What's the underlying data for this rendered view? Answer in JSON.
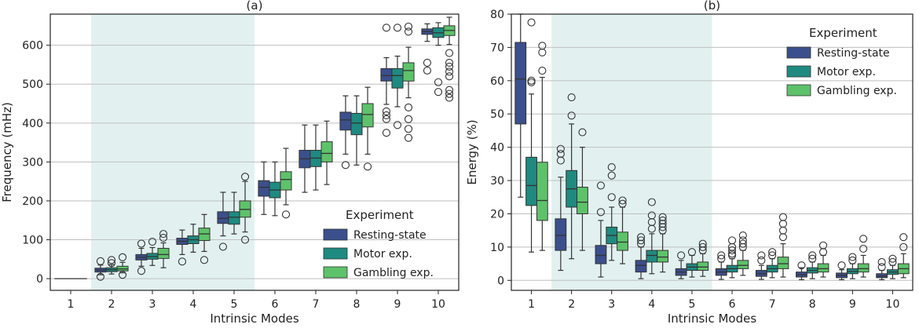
{
  "colors": {
    "resting": "#3b4f8c",
    "motor": "#1f8a80",
    "gambling": "#5ec26a",
    "shade": "#e2f1f0",
    "grid": "#bfbfbf",
    "axis": "#222222"
  },
  "chart_data": [
    {
      "type": "box",
      "panel_label": "(a)",
      "title": "",
      "xlabel": "Intrinsic Modes",
      "ylabel": "Frequency  (mHz)",
      "categories": [
        "1",
        "2",
        "3",
        "4",
        "5",
        "6",
        "7",
        "8",
        "9",
        "10"
      ],
      "ylim": [
        -30,
        680
      ],
      "yticks": [
        0,
        100,
        200,
        300,
        400,
        500,
        600
      ],
      "grid": "horizontal",
      "shaded_range": [
        2,
        5
      ],
      "legend": {
        "title": "Experiment",
        "position": "bottom-right"
      },
      "mode1_line": {
        "category": "1",
        "value": 0
      },
      "series": [
        {
          "name": "Resting-state",
          "color_key": "resting",
          "boxes": [
            null,
            {
              "q1": 17,
              "med": 22,
              "q3": 27,
              "lo": 10,
              "hi": 35,
              "out": [
                5,
                45
              ]
            },
            {
              "q1": 48,
              "med": 55,
              "q3": 62,
              "lo": 32,
              "hi": 78,
              "out": [
                20,
                90
              ]
            },
            {
              "q1": 88,
              "med": 96,
              "q3": 104,
              "lo": 62,
              "hi": 125,
              "out": [
                44
              ]
            },
            {
              "q1": 142,
              "med": 155,
              "q3": 172,
              "lo": 110,
              "hi": 222,
              "out": [
                82
              ]
            },
            {
              "q1": 212,
              "med": 235,
              "q3": 252,
              "lo": 165,
              "hi": 300,
              "out": []
            },
            {
              "q1": 285,
              "med": 308,
              "q3": 330,
              "lo": 222,
              "hi": 395,
              "out": []
            },
            {
              "q1": 382,
              "med": 408,
              "q3": 428,
              "lo": 320,
              "hi": 470,
              "out": [
                292
              ]
            },
            {
              "q1": 508,
              "med": 522,
              "q3": 540,
              "lo": 448,
              "hi": 568,
              "out": [
                375,
                410,
                420,
                430,
                645
              ]
            },
            {
              "q1": 628,
              "med": 635,
              "q3": 642,
              "lo": 610,
              "hi": 655,
              "out": [
                535,
                555
              ]
            }
          ]
        },
        {
          "name": "Motor exp.",
          "color_key": "motor",
          "boxes": [
            null,
            {
              "q1": 18,
              "med": 23,
              "q3": 28,
              "lo": 12,
              "hi": 36,
              "out": [
                40,
                48
              ]
            },
            {
              "q1": 50,
              "med": 57,
              "q3": 65,
              "lo": 34,
              "hi": 80,
              "out": [
                95
              ]
            },
            {
              "q1": 90,
              "med": 100,
              "q3": 110,
              "lo": 68,
              "hi": 140,
              "out": []
            },
            {
              "q1": 140,
              "med": 158,
              "q3": 172,
              "lo": 115,
              "hi": 222,
              "out": []
            },
            {
              "q1": 208,
              "med": 228,
              "q3": 248,
              "lo": 162,
              "hi": 300,
              "out": []
            },
            {
              "q1": 288,
              "med": 310,
              "q3": 330,
              "lo": 228,
              "hi": 395,
              "out": []
            },
            {
              "q1": 370,
              "med": 400,
              "q3": 425,
              "lo": 292,
              "hi": 470,
              "out": []
            },
            {
              "q1": 490,
              "med": 522,
              "q3": 540,
              "lo": 442,
              "hi": 572,
              "out": [
                395,
                645
              ]
            },
            {
              "q1": 620,
              "med": 632,
              "q3": 645,
              "lo": 600,
              "hi": 658,
              "out": [
                480,
                505
              ]
            }
          ]
        },
        {
          "name": "Gambling exp.",
          "color_key": "gambling",
          "boxes": [
            null,
            {
              "q1": 20,
              "med": 25,
              "q3": 32,
              "lo": 15,
              "hi": 42,
              "out": [
                10,
                55
              ]
            },
            {
              "q1": 52,
              "med": 62,
              "q3": 78,
              "lo": 28,
              "hi": 92,
              "out": [
                105,
                115
              ]
            },
            {
              "q1": 98,
              "med": 115,
              "q3": 130,
              "lo": 70,
              "hi": 165,
              "out": [
                48
              ]
            },
            {
              "q1": 158,
              "med": 178,
              "q3": 200,
              "lo": 120,
              "hi": 250,
              "out": [
                100,
                262
              ]
            },
            {
              "q1": 228,
              "med": 255,
              "q3": 275,
              "lo": 190,
              "hi": 335,
              "out": [
                165
              ]
            },
            {
              "q1": 300,
              "med": 322,
              "q3": 352,
              "lo": 242,
              "hi": 405,
              "out": []
            },
            {
              "q1": 390,
              "med": 422,
              "q3": 450,
              "lo": 320,
              "hi": 492,
              "out": [
                288
              ]
            },
            {
              "q1": 508,
              "med": 535,
              "q3": 555,
              "lo": 465,
              "hi": 595,
              "out": [
                362,
                385,
                410,
                440,
                635,
                648
              ]
            },
            {
              "q1": 625,
              "med": 638,
              "q3": 650,
              "lo": 602,
              "hi": 672,
              "out": [
                465,
                475,
                485,
                520,
                532,
                545,
                555,
                580
              ]
            }
          ]
        }
      ]
    },
    {
      "type": "box",
      "panel_label": "(b)",
      "title": "",
      "xlabel": "Intrinsic Modes",
      "ylabel": "Energy (%)",
      "categories": [
        "1",
        "2",
        "3",
        "4",
        "5",
        "6",
        "7",
        "8",
        "9",
        "10"
      ],
      "ylim": [
        -3,
        80
      ],
      "yticks": [
        0,
        10,
        20,
        30,
        40,
        50,
        60,
        70,
        80
      ],
      "grid": "horizontal",
      "shaded_range": [
        2,
        5
      ],
      "legend": {
        "title": "Experiment",
        "position": "top-right"
      },
      "series": [
        {
          "name": "Resting-state",
          "color_key": "resting",
          "boxes": [
            {
              "q1": 47,
              "med": 60.5,
              "q3": 71.5,
              "lo": 25,
              "hi": 80,
              "out": []
            },
            {
              "q1": 9,
              "med": 13.5,
              "q3": 18.5,
              "lo": 3,
              "hi": 31,
              "out": [
                36,
                38,
                39.5
              ]
            },
            {
              "q1": 5,
              "med": 7.5,
              "q3": 10.5,
              "lo": 1,
              "hi": 18,
              "out": [
                20.5,
                28.5
              ]
            },
            {
              "q1": 2.5,
              "med": 4.5,
              "q3": 6,
              "lo": 0.5,
              "hi": 10,
              "out": [
                11,
                12,
                13
              ]
            },
            {
              "q1": 1.5,
              "med": 2.5,
              "q3": 3.5,
              "lo": 0.5,
              "hi": 6,
              "out": [
                7.5
              ]
            },
            {
              "q1": 1.5,
              "med": 2.5,
              "q3": 3.5,
              "lo": 0.3,
              "hi": 5.5,
              "out": [
                6.5,
                7.5
              ]
            },
            {
              "q1": 1.2,
              "med": 2,
              "q3": 3,
              "lo": 0.3,
              "hi": 4.5,
              "out": [
                6,
                7.5
              ]
            },
            {
              "q1": 1,
              "med": 1.7,
              "q3": 2.5,
              "lo": 0.2,
              "hi": 3.8,
              "out": [
                4.5
              ]
            },
            {
              "q1": 0.8,
              "med": 1.5,
              "q3": 2.2,
              "lo": 0.2,
              "hi": 3.2,
              "out": [
                4.5
              ]
            },
            {
              "q1": 0.8,
              "med": 1.3,
              "q3": 2,
              "lo": 0.2,
              "hi": 3,
              "out": [
                4,
                5.5
              ]
            }
          ]
        },
        {
          "name": "Motor exp.",
          "color_key": "motor",
          "boxes": [
            {
              "q1": 22.5,
              "med": 28.5,
              "q3": 37,
              "lo": 8.5,
              "hi": 56,
              "out": [
                59.5,
                60,
                77.5
              ]
            },
            {
              "q1": 22,
              "med": 27.5,
              "q3": 33,
              "lo": 6.5,
              "hi": 47,
              "out": [
                49.5,
                55
              ]
            },
            {
              "q1": 11,
              "med": 13.5,
              "q3": 16,
              "lo": 6,
              "hi": 22,
              "out": [
                25,
                31.5,
                34
              ]
            },
            {
              "q1": 5.5,
              "med": 7.5,
              "q3": 9,
              "lo": 2,
              "hi": 14,
              "out": [
                15.5,
                17.5,
                19.5,
                23.5
              ]
            },
            {
              "q1": 3,
              "med": 4,
              "q3": 5,
              "lo": 1,
              "hi": 7.5,
              "out": [
                8.5
              ]
            },
            {
              "q1": 2.5,
              "med": 3.5,
              "q3": 4.5,
              "lo": 0.8,
              "hi": 6.5,
              "out": [
                7.5,
                8,
                9,
                10,
                12
              ]
            },
            {
              "q1": 2.5,
              "med": 3.5,
              "q3": 4.5,
              "lo": 0.8,
              "hi": 6.5,
              "out": [
                7.5,
                8.5
              ]
            },
            {
              "q1": 2.2,
              "med": 3,
              "q3": 3.8,
              "lo": 0.5,
              "hi": 5.5,
              "out": [
                6.5,
                7.5
              ]
            },
            {
              "q1": 2,
              "med": 2.7,
              "q3": 3.5,
              "lo": 0.5,
              "hi": 5,
              "out": [
                6,
                7
              ]
            },
            {
              "q1": 1.8,
              "med": 2.5,
              "q3": 3.2,
              "lo": 0.5,
              "hi": 4.5,
              "out": [
                5.5,
                6.5
              ]
            }
          ]
        },
        {
          "name": "Gambling exp.",
          "color_key": "gambling",
          "boxes": [
            {
              "q1": 18,
              "med": 24,
              "q3": 35.5,
              "lo": 9,
              "hi": 61,
              "out": [
                63,
                68.5,
                70.5
              ]
            },
            {
              "q1": 20,
              "med": 23.5,
              "q3": 28,
              "lo": 9,
              "hi": 40,
              "out": [
                44.5
              ]
            },
            {
              "q1": 9,
              "med": 11.5,
              "q3": 14.5,
              "lo": 5,
              "hi": 22,
              "out": [
                23,
                24
              ]
            },
            {
              "q1": 5.5,
              "med": 7,
              "q3": 9,
              "lo": 2.5,
              "hi": 14,
              "out": [
                15,
                16,
                17,
                18,
                19
              ]
            },
            {
              "q1": 3,
              "med": 4,
              "q3": 5.5,
              "lo": 1.2,
              "hi": 8,
              "out": [
                9,
                10,
                11
              ]
            },
            {
              "q1": 3.5,
              "med": 4.5,
              "q3": 6,
              "lo": 1.5,
              "hi": 9,
              "out": [
                10,
                11,
                12,
                13.5
              ]
            },
            {
              "q1": 3.5,
              "med": 5,
              "q3": 7,
              "lo": 1,
              "hi": 11,
              "out": [
                13,
                15,
                17,
                19
              ]
            },
            {
              "q1": 2.5,
              "med": 3.5,
              "q3": 5,
              "lo": 1,
              "hi": 7.5,
              "out": [
                8.5,
                10.5
              ]
            },
            {
              "q1": 2.5,
              "med": 3.5,
              "q3": 5,
              "lo": 1,
              "hi": 7.5,
              "out": [
                9.5,
                12.5
              ]
            },
            {
              "q1": 2,
              "med": 3.5,
              "q3": 5,
              "lo": 0.8,
              "hi": 8,
              "out": [
                10,
                13
              ]
            }
          ]
        }
      ]
    }
  ]
}
